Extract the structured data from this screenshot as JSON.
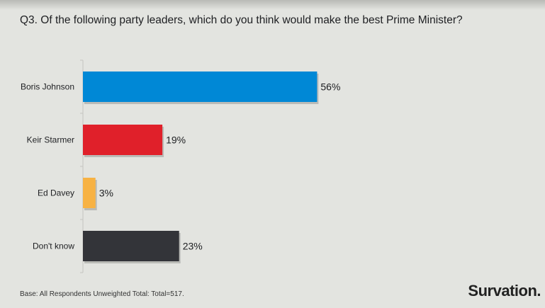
{
  "title": "Q3. Of the following party leaders, which do you think would make the best Prime Minister?",
  "footnote": "Base: All Respondents Unweighted Total: Total=517.",
  "logo": "Survation.",
  "chart_data": {
    "type": "bar",
    "orientation": "horizontal",
    "categories": [
      "Boris Johnson",
      "Keir Starmer",
      "Ed Davey",
      "Don't know"
    ],
    "values": [
      56,
      19,
      3,
      23
    ],
    "value_labels": [
      "56%",
      "19%",
      "3%",
      "23%"
    ],
    "colors": [
      "#0088d6",
      "#e0202a",
      "#f7b244",
      "#333439"
    ],
    "xlim": [
      0,
      100
    ],
    "grid": false
  }
}
